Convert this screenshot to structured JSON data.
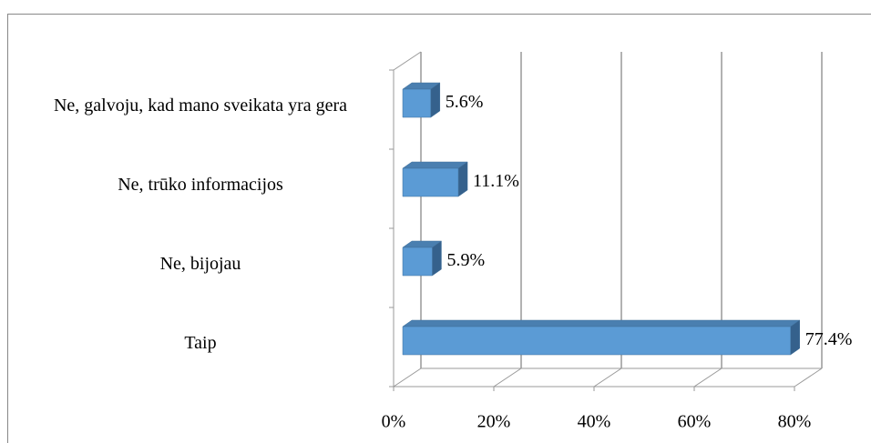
{
  "chart_data": {
    "type": "bar3d_horizontal",
    "categories": [
      "Ne, galvoju, kad mano sveikata yra gera",
      "Ne, trūko informacijos",
      "Ne, bijojau",
      "Taip"
    ],
    "values": [
      5.6,
      11.1,
      5.9,
      77.4
    ],
    "value_labels": [
      "5.6%",
      "11.1%",
      "5.9%",
      "77.4%"
    ],
    "color": "#5b9bd5",
    "xlim": [
      0,
      80
    ],
    "xticks": [
      {
        "value": 0,
        "label": "0%"
      },
      {
        "value": 20,
        "label": "20%"
      },
      {
        "value": 40,
        "label": "40%"
      },
      {
        "value": 60,
        "label": "60%"
      },
      {
        "value": 80,
        "label": "80%"
      }
    ],
    "grid": true
  }
}
